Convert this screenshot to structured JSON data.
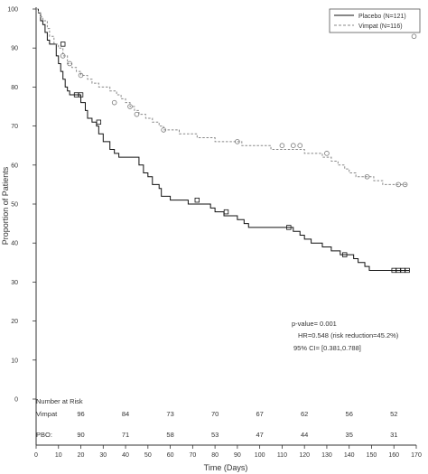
{
  "chart_data": {
    "type": "line",
    "subtype": "kaplan-meier",
    "xlabel": "Time (Days)",
    "ylabel": "Proportion of Patients",
    "xlim": [
      0,
      170
    ],
    "ylim": [
      0,
      100
    ],
    "x_ticks": [
      0,
      10,
      20,
      30,
      40,
      50,
      60,
      70,
      80,
      90,
      100,
      110,
      120,
      130,
      140,
      150,
      160,
      170
    ],
    "y_ticks": [
      0,
      10,
      20,
      30,
      40,
      50,
      60,
      70,
      80,
      90,
      100
    ],
    "grid": false,
    "legend": {
      "placement": "top-right"
    },
    "series": [
      {
        "name": "Placebo (N=121)",
        "style": "solid",
        "color": "#111111",
        "points": [
          [
            0,
            100
          ],
          [
            1,
            99
          ],
          [
            2,
            97
          ],
          [
            3,
            96
          ],
          [
            4,
            94
          ],
          [
            5,
            92
          ],
          [
            6,
            91
          ],
          [
            8,
            91
          ],
          [
            9,
            88
          ],
          [
            10,
            86
          ],
          [
            11,
            84
          ],
          [
            12,
            82
          ],
          [
            13,
            80
          ],
          [
            14,
            79
          ],
          [
            15,
            78
          ],
          [
            18,
            78
          ],
          [
            20,
            76
          ],
          [
            22,
            74
          ],
          [
            23,
            72
          ],
          [
            25,
            71
          ],
          [
            27,
            70
          ],
          [
            28,
            68
          ],
          [
            30,
            66
          ],
          [
            33,
            64
          ],
          [
            35,
            63
          ],
          [
            37,
            62
          ],
          [
            44,
            62
          ],
          [
            46,
            60
          ],
          [
            48,
            58
          ],
          [
            50,
            57
          ],
          [
            52,
            55
          ],
          [
            55,
            54
          ],
          [
            56,
            52
          ],
          [
            60,
            51
          ],
          [
            65,
            51
          ],
          [
            68,
            50
          ],
          [
            75,
            50
          ],
          [
            78,
            49
          ],
          [
            80,
            48
          ],
          [
            83,
            48
          ],
          [
            84,
            47
          ],
          [
            90,
            46
          ],
          [
            93,
            45
          ],
          [
            95,
            44
          ],
          [
            113,
            44
          ],
          [
            115,
            43
          ],
          [
            118,
            42
          ],
          [
            120,
            41
          ],
          [
            123,
            40
          ],
          [
            128,
            39
          ],
          [
            132,
            38
          ],
          [
            136,
            37
          ],
          [
            142,
            36
          ],
          [
            144,
            35
          ],
          [
            147,
            34
          ],
          [
            149,
            33
          ],
          [
            167,
            33
          ]
        ],
        "censored": [
          [
            12,
            91
          ],
          [
            18,
            78
          ],
          [
            20,
            78
          ],
          [
            28,
            71
          ],
          [
            72,
            51
          ],
          [
            85,
            48
          ],
          [
            113,
            44
          ],
          [
            138,
            37
          ],
          [
            160,
            33
          ],
          [
            162,
            33
          ],
          [
            164,
            33
          ],
          [
            166,
            33
          ],
          [
            168,
            97
          ]
        ]
      },
      {
        "name": "Vimpat (N=116)",
        "style": "dashed",
        "color": "#888888",
        "points": [
          [
            0,
            100
          ],
          [
            1,
            99
          ],
          [
            2,
            98
          ],
          [
            3,
            97
          ],
          [
            5,
            95
          ],
          [
            6,
            93
          ],
          [
            8,
            91
          ],
          [
            10,
            90
          ],
          [
            12,
            88
          ],
          [
            14,
            86
          ],
          [
            16,
            85
          ],
          [
            18,
            84
          ],
          [
            20,
            83
          ],
          [
            23,
            82
          ],
          [
            25,
            81
          ],
          [
            28,
            80
          ],
          [
            33,
            79
          ],
          [
            36,
            78
          ],
          [
            38,
            77
          ],
          [
            40,
            76
          ],
          [
            42,
            75
          ],
          [
            44,
            74
          ],
          [
            46,
            73
          ],
          [
            49,
            72
          ],
          [
            52,
            71
          ],
          [
            55,
            70
          ],
          [
            57,
            69
          ],
          [
            62,
            69
          ],
          [
            64,
            68
          ],
          [
            70,
            68
          ],
          [
            72,
            67
          ],
          [
            77,
            67
          ],
          [
            80,
            66
          ],
          [
            85,
            66
          ],
          [
            92,
            65
          ],
          [
            103,
            65
          ],
          [
            105,
            64
          ],
          [
            117,
            64
          ],
          [
            120,
            63
          ],
          [
            125,
            63
          ],
          [
            128,
            62
          ],
          [
            132,
            61
          ],
          [
            135,
            60
          ],
          [
            138,
            59
          ],
          [
            140,
            58
          ],
          [
            143,
            57
          ],
          [
            148,
            57
          ],
          [
            151,
            56
          ],
          [
            155,
            55
          ],
          [
            160,
            55
          ],
          [
            166,
            55
          ]
        ],
        "censored": [
          [
            12,
            88
          ],
          [
            15,
            86
          ],
          [
            20,
            83
          ],
          [
            35,
            76
          ],
          [
            42,
            75
          ],
          [
            45,
            73
          ],
          [
            57,
            69
          ],
          [
            90,
            66
          ],
          [
            110,
            65
          ],
          [
            115,
            65
          ],
          [
            118,
            65
          ],
          [
            130,
            63
          ],
          [
            148,
            57
          ],
          [
            162,
            55
          ],
          [
            165,
            55
          ],
          [
            169,
            93
          ]
        ]
      }
    ],
    "annotations": [
      "p-value= 0.001",
      "HR=0.548 (risk reduction=45.2%)",
      "95% CI= [0.381,0.788]"
    ],
    "risk_table": {
      "title": "Number at Risk",
      "x": [
        0,
        20,
        40,
        60,
        80,
        100,
        120,
        140,
        160
      ],
      "rows": [
        {
          "label": "Vimpat",
          "values": [
            "",
            "96",
            "84",
            "73",
            "70",
            "67",
            "62",
            "56",
            "52"
          ]
        },
        {
          "label": "PBO:",
          "values": [
            "",
            "90",
            "71",
            "58",
            "53",
            "47",
            "44",
            "35",
            "31"
          ]
        }
      ]
    }
  }
}
